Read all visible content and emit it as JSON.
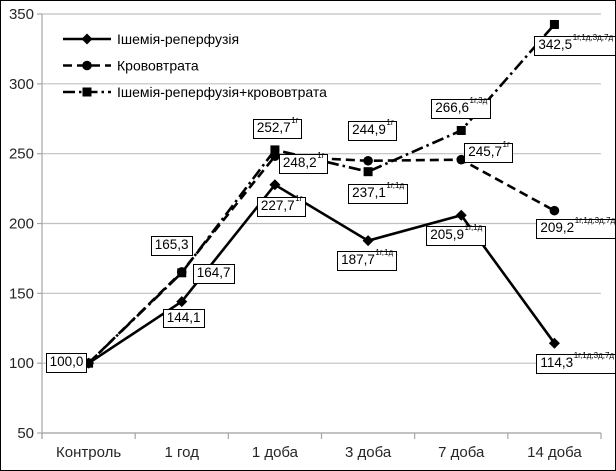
{
  "chart_data": {
    "type": "line",
    "title": "",
    "xlabel": "",
    "ylabel": "",
    "categories": [
      "Контроль",
      "1 год",
      "1 доба",
      "3 доба",
      "7 доба",
      "14 доба"
    ],
    "y_axis": {
      "min": 50,
      "max": 350,
      "step": 50,
      "ticks": [
        50,
        100,
        150,
        200,
        250,
        300,
        350
      ]
    },
    "grid": "horizontal",
    "legend_position": "top-left-inside",
    "colors": {
      "series": "#000000",
      "gridline": "#c0c0c0",
      "axis": "#a6a6a6",
      "text": "#262626",
      "label_box_fill": "#ffffff",
      "label_box_border": "#000000"
    },
    "series": [
      {
        "name": "Ішемія-реперфузія",
        "marker": "diamond",
        "line_style": "solid",
        "values": [
          100.0,
          144.1,
          227.7,
          187.7,
          205.9,
          114.3
        ],
        "labels": [
          {
            "text": "100,0",
            "sup": "",
            "dx": -43,
            "dy": -10
          },
          {
            "text": "144,1",
            "sup": "",
            "dx": -19,
            "dy": 7
          },
          {
            "text": "227,7",
            "sup": "1г",
            "dx": -18,
            "dy": 12
          },
          {
            "text": "187,7",
            "sup": "1г,1д",
            "dx": -31,
            "dy": 10
          },
          {
            "text": "205,9",
            "sup": "1г,1д",
            "dx": -35,
            "dy": 11
          },
          {
            "text": "114,3",
            "sup": "1г,1д,3д,7д",
            "dx": -18,
            "dy": 11
          }
        ]
      },
      {
        "name": "Крововтрата",
        "marker": "circle",
        "line_style": "dashed",
        "values": [
          100.0,
          165.3,
          248.2,
          244.9,
          245.7,
          209.2
        ],
        "labels": [
          null,
          {
            "text": "165,3",
            "sup": "",
            "dx": -31,
            "dy": -36
          },
          {
            "text": "248,2",
            "sup": "1г",
            "dx": 4,
            "dy": -2
          },
          {
            "text": "244,9",
            "sup": "1г",
            "dx": -20,
            "dy": -40
          },
          {
            "text": "245,7",
            "sup": "1г",
            "dx": 3,
            "dy": -17
          },
          {
            "text": "209,2",
            "sup": "1г,1д,3д,7д",
            "dx": -18,
            "dy": 8
          }
        ]
      },
      {
        "name": "Ішемія-реперфузія+крововтрата",
        "marker": "square",
        "line_style": "dash-dot",
        "values": [
          100.0,
          164.7,
          252.7,
          237.1,
          266.6,
          342.5
        ],
        "labels": [
          null,
          {
            "text": "164,7",
            "sup": "",
            "dx": 11,
            "dy": -9
          },
          {
            "text": "252,7",
            "sup": "1г",
            "dx": -22,
            "dy": -31
          },
          {
            "text": "237,1",
            "sup": "1г,1д",
            "dx": -20,
            "dy": 12
          },
          {
            "text": "266,6",
            "sup": "1г,3д",
            "dx": -30,
            "dy": -31
          },
          {
            "text": "342,5",
            "sup": "1г,1д,3д,7д",
            "dx": -20,
            "dy": 12
          }
        ]
      }
    ]
  }
}
